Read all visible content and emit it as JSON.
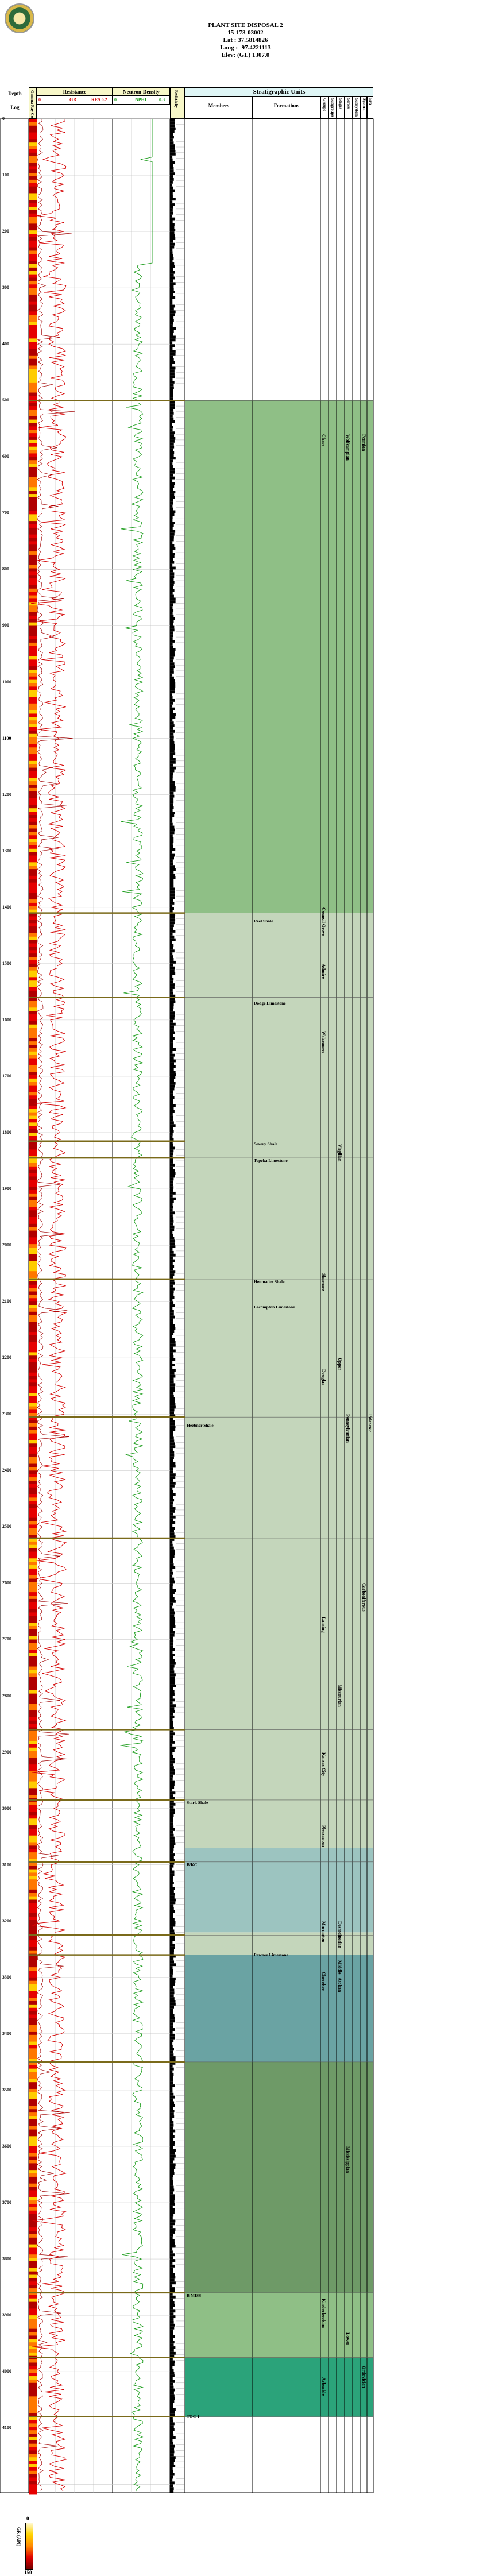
{
  "header": {
    "lines": [
      "PLANT SITE DISPOSAL 2",
      "15-173-03002",
      "Lat : 37.5814826",
      "Long : -97.4221113",
      "Elev: (GL) 1307.0"
    ]
  },
  "columns": {
    "depth": "Depth",
    "log": "Log",
    "gr_column": "Gamma Ray Column",
    "resistance_title": "Resistance",
    "resistance_left": "0",
    "resistance_mid": "GR",
    "resistance_right_label": "150",
    "resistance_right": "RES 0.2",
    "neutron_title": "Neutron-Density",
    "neutron_left": "0",
    "neutron_mid": "NPHI",
    "neutron_right": "0.3",
    "resistivity_col": "Resistivity",
    "strat_title": "Stratigraphic Units",
    "members": "Members",
    "formations": "Formations",
    "groups": "Groups",
    "subgroups": "Subgroups",
    "stages": "Stages",
    "series": "Series",
    "subsystems": "Subsystem",
    "systems": "System",
    "era": "Era"
  },
  "depth_labels": [
    "0",
    "100",
    "200",
    "300",
    "400",
    "500",
    "600",
    "700",
    "800",
    "900",
    "1000",
    "1100",
    "1200",
    "1300",
    "1400",
    "1500",
    "1600",
    "1700",
    "1800",
    "1900",
    "2000",
    "2100",
    "2200",
    "2300",
    "2400",
    "2500",
    "2600",
    "2700",
    "2800",
    "2900",
    "3000",
    "3100",
    "3200",
    "3300",
    "3400",
    "3500",
    "3600",
    "3700",
    "3800",
    "3900",
    "4000",
    "4100"
  ],
  "members": [
    {
      "name": "Reel Shale",
      "depth": 1420
    },
    {
      "name": "Dodge Limestone",
      "depth": 1565
    },
    {
      "name": "Severy Shale",
      "depth": 1815
    },
    {
      "name": "Topeka Limestone",
      "depth": 1845
    },
    {
      "name": "Heumader Shale",
      "depth": 2060
    },
    {
      "name": "Lecompton Limestone",
      "depth": 2105
    },
    {
      "name": "Heebner Shale",
      "depth": 2315
    },
    {
      "name": "Stark Shale",
      "depth": 2985
    },
    {
      "name": "B/KC",
      "depth": 3095
    },
    {
      "name": "Pawnee Limestone",
      "depth": 3255
    },
    {
      "name": "B MISS",
      "depth": 3860
    },
    {
      "name": "TOC-1",
      "depth": 4075
    }
  ],
  "vertical_labels": [
    {
      "text": "Chase",
      "col": "groups",
      "depth": 560
    },
    {
      "text": "Council Grove",
      "col": "groups",
      "depth": 1400
    },
    {
      "text": "Admire",
      "col": "groups",
      "depth": 1500
    },
    {
      "text": "Wabaunsee",
      "col": "groups",
      "depth": 1620
    },
    {
      "text": "Shawnee",
      "col": "groups",
      "depth": 2050
    },
    {
      "text": "Douglas",
      "col": "groups",
      "depth": 2220
    },
    {
      "text": "Lansing",
      "col": "groups",
      "depth": 2660
    },
    {
      "text": "Kansas City",
      "col": "groups",
      "depth": 2900
    },
    {
      "text": "Pleasanton",
      "col": "groups",
      "depth": 3030
    },
    {
      "text": "Marmaton",
      "col": "groups",
      "depth": 3200
    },
    {
      "text": "Cherokee",
      "col": "groups",
      "depth": 3290
    },
    {
      "text": "Kinderhookian",
      "col": "groups",
      "depth": 3870
    },
    {
      "text": "Arbuckle",
      "col": "groups",
      "depth": 4010
    },
    {
      "text": "Virgilian",
      "col": "stages",
      "depth": 1820
    },
    {
      "text": "Upper",
      "col": "stages",
      "depth": 2200
    },
    {
      "text": "Missourian",
      "col": "stages",
      "depth": 2780
    },
    {
      "text": "Desmoinesian",
      "col": "stages",
      "depth": 3200
    },
    {
      "text": "Atokan",
      "col": "stages",
      "depth": 3300
    },
    {
      "text": "Middle",
      "col": "stages",
      "depth": 3270
    },
    {
      "text": "Mississippian",
      "col": "series",
      "depth": 3600
    },
    {
      "text": "Lower",
      "col": "series",
      "depth": 3930
    },
    {
      "text": "Wolfcampian",
      "col": "series",
      "depth": 560
    },
    {
      "text": "Pennsylvanian",
      "col": "series",
      "depth": 2300
    },
    {
      "text": "Carboniferous",
      "col": "systems",
      "depth": 2600
    },
    {
      "text": "Paleozoic",
      "col": "era",
      "depth": 2300
    },
    {
      "text": "Ordovician",
      "col": "systems",
      "depth": 3990
    },
    {
      "text": "Permian",
      "col": "systems",
      "depth": 560
    }
  ],
  "strat_bands": [
    {
      "top": 500,
      "bottom": 1410,
      "color": "#8fbf86"
    },
    {
      "top": 1410,
      "bottom": 3070,
      "color": "#c4d6bb"
    },
    {
      "top": 3070,
      "bottom": 3220,
      "color": "#9cc4c0"
    },
    {
      "top": 3220,
      "bottom": 3260,
      "color": "#c4d6bb"
    },
    {
      "top": 3260,
      "bottom": 3450,
      "color": "#6aa3a3"
    },
    {
      "top": 3450,
      "bottom": 3860,
      "color": "#6e9a67"
    },
    {
      "top": 3860,
      "bottom": 3975,
      "color": "#8fbf86"
    },
    {
      "top": 3975,
      "bottom": 4080,
      "color": "#2ba37a"
    }
  ],
  "tops": [
    500,
    1410,
    1560,
    1815,
    1845,
    2060,
    2305,
    2520,
    2860,
    2985,
    3095,
    3225,
    3260,
    3450,
    3860,
    3975,
    4080
  ],
  "colorbar": {
    "title": "GR (API)",
    "min": "0",
    "max": "150"
  },
  "colors": {
    "gr_curve": "#d40000",
    "neutron_curve": "#1a9c1a",
    "header_strat_bg": "#dff6f6",
    "track_header_bg": "#f7f7c8",
    "top_line": "#7a6a1a"
  }
}
